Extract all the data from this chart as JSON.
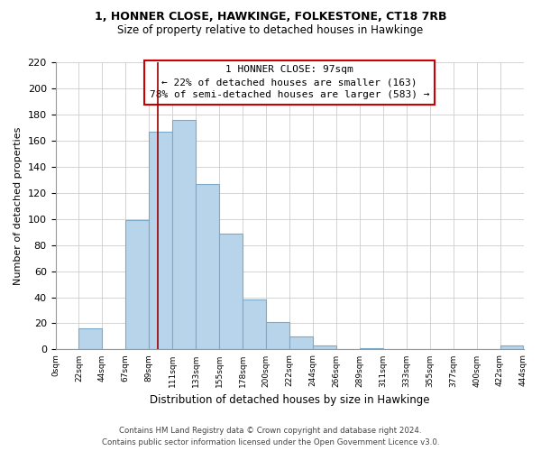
{
  "title_line1": "1, HONNER CLOSE, HAWKINGE, FOLKESTONE, CT18 7RB",
  "title_line2": "Size of property relative to detached houses in Hawkinge",
  "xlabel": "Distribution of detached houses by size in Hawkinge",
  "ylabel": "Number of detached properties",
  "bin_labels": [
    "0sqm",
    "22sqm",
    "44sqm",
    "67sqm",
    "89sqm",
    "111sqm",
    "133sqm",
    "155sqm",
    "178sqm",
    "200sqm",
    "222sqm",
    "244sqm",
    "266sqm",
    "289sqm",
    "311sqm",
    "333sqm",
    "355sqm",
    "377sqm",
    "400sqm",
    "422sqm",
    "444sqm"
  ],
  "bar_heights": [
    0,
    16,
    0,
    99,
    167,
    176,
    127,
    89,
    38,
    21,
    10,
    3,
    0,
    1,
    0,
    0,
    0,
    0,
    0,
    3
  ],
  "bar_color": "#b8d4ea",
  "bar_edgecolor": "#7aaac8",
  "grid_color": "#cccccc",
  "annotation_box_color": "#cc0000",
  "bin_edge_values": [
    0,
    22,
    44,
    67,
    89,
    111,
    133,
    155,
    178,
    200,
    222,
    244,
    266,
    289,
    311,
    333,
    355,
    377,
    400,
    422,
    444
  ],
  "property_line_x": 97,
  "annotation_title": "1 HONNER CLOSE: 97sqm",
  "annotation_line1": "← 22% of detached houses are smaller (163)",
  "annotation_line2": "78% of semi-detached houses are larger (583) →",
  "footer_line1": "Contains HM Land Registry data © Crown copyright and database right 2024.",
  "footer_line2": "Contains public sector information licensed under the Open Government Licence v3.0.",
  "ylim": [
    0,
    220
  ],
  "yticks": [
    0,
    20,
    40,
    60,
    80,
    100,
    120,
    140,
    160,
    180,
    200,
    220
  ]
}
